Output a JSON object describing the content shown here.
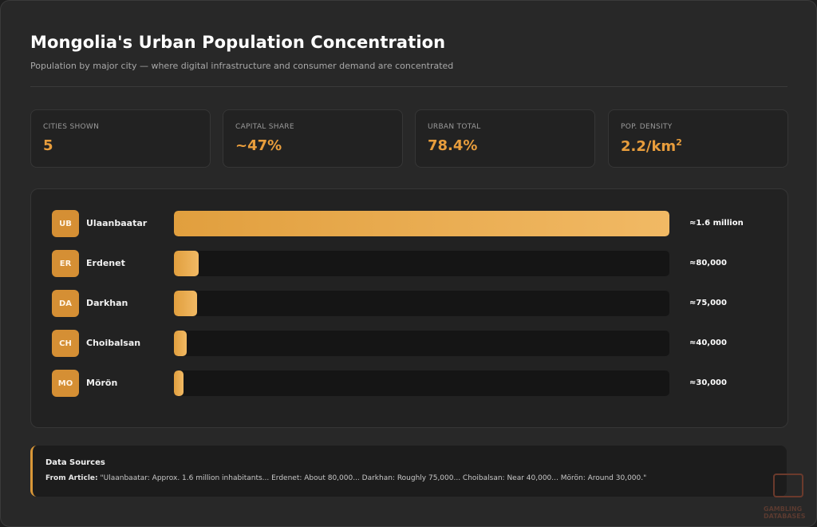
{
  "header": {
    "title": "Mongolia's Urban Population Concentration",
    "subtitle": "Population by major city — where digital infrastructure and consumer demand are concentrated"
  },
  "stats": [
    {
      "label": "CITIES SHOWN",
      "value": "5",
      "sup": ""
    },
    {
      "label": "CAPITAL SHARE",
      "value": "~47%",
      "sup": ""
    },
    {
      "label": "URBAN TOTAL",
      "value": "78.4%",
      "sup": ""
    },
    {
      "label": "POP. DENSITY",
      "value": "2.2/km",
      "sup": "2"
    }
  ],
  "chart_data": {
    "type": "bar",
    "orientation": "horizontal",
    "categories": [
      "Ulaanbaatar",
      "Erdenet",
      "Darkhan",
      "Choibalsan",
      "Mörön"
    ],
    "badges": [
      "UB",
      "ER",
      "DA",
      "CH",
      "MO"
    ],
    "values": [
      1600000,
      80000,
      75000,
      40000,
      30000
    ],
    "value_labels": [
      "≈1.6 million",
      "≈80,000",
      "≈75,000",
      "≈40,000",
      "≈30,000"
    ],
    "xlim": [
      0,
      1600000
    ],
    "bar_color": "#e8a84a",
    "grid": false
  },
  "sources": {
    "heading": "Data Sources",
    "lead": "From Article:",
    "text": "\"Ulaanbaatar: Approx. 1.6 million inhabitants... Erdenet: About 80,000... Darkhan: Roughly 75,000... Choibalsan: Near 40,000... Mörön: Around 30,000.\""
  },
  "watermark": {
    "text": "GAMBLING DATABASES"
  }
}
